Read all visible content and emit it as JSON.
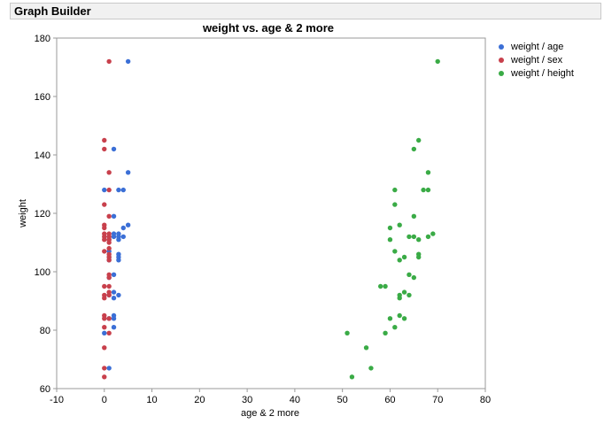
{
  "window": {
    "title": "Graph Builder"
  },
  "chart_data": {
    "type": "scatter",
    "title": "weight vs. age & 2 more",
    "xlabel": "age & 2 more",
    "ylabel": "weight",
    "xlim": [
      -10,
      80
    ],
    "ylim": [
      60,
      180
    ],
    "xticks": [
      -10,
      0,
      10,
      20,
      30,
      40,
      50,
      60,
      70,
      80
    ],
    "yticks": [
      60,
      80,
      100,
      120,
      140,
      160,
      180
    ],
    "grid": false,
    "legend_position": "right",
    "series": [
      {
        "name": "weight / age",
        "color": "#3b6fd6",
        "points": [
          [
            5,
            172
          ],
          [
            2,
            142
          ],
          [
            5,
            134
          ],
          [
            0,
            128
          ],
          [
            3,
            128
          ],
          [
            4,
            128
          ],
          [
            2,
            119
          ],
          [
            5,
            116
          ],
          [
            4,
            115
          ],
          [
            2,
            113
          ],
          [
            3,
            113
          ],
          [
            1,
            112
          ],
          [
            2,
            112
          ],
          [
            3,
            112
          ],
          [
            4,
            112
          ],
          [
            1,
            111
          ],
          [
            3,
            111
          ],
          [
            1,
            107
          ],
          [
            3,
            106
          ],
          [
            1,
            105
          ],
          [
            3,
            105
          ],
          [
            1,
            104
          ],
          [
            3,
            104
          ],
          [
            2,
            99
          ],
          [
            1,
            98
          ],
          [
            2,
            93
          ],
          [
            3,
            92
          ],
          [
            1,
            92
          ],
          [
            2,
            91
          ],
          [
            2,
            85
          ],
          [
            1,
            84
          ],
          [
            2,
            84
          ],
          [
            2,
            81
          ],
          [
            0,
            79
          ],
          [
            1,
            67
          ]
        ]
      },
      {
        "name": "weight / sex",
        "color": "#c8404c",
        "points": [
          [
            1,
            172
          ],
          [
            0,
            145
          ],
          [
            0,
            142
          ],
          [
            1,
            134
          ],
          [
            1,
            128
          ],
          [
            0,
            123
          ],
          [
            1,
            119
          ],
          [
            0,
            116
          ],
          [
            0,
            115
          ],
          [
            0,
            113
          ],
          [
            1,
            113
          ],
          [
            0,
            112
          ],
          [
            1,
            112
          ],
          [
            0,
            111
          ],
          [
            1,
            111
          ],
          [
            1,
            110
          ],
          [
            1,
            108
          ],
          [
            0,
            107
          ],
          [
            1,
            106
          ],
          [
            1,
            105
          ],
          [
            1,
            104
          ],
          [
            1,
            99
          ],
          [
            1,
            98
          ],
          [
            0,
            95
          ],
          [
            1,
            95
          ],
          [
            1,
            93
          ],
          [
            0,
            92
          ],
          [
            1,
            92
          ],
          [
            0,
            91
          ],
          [
            0,
            85
          ],
          [
            0,
            84
          ],
          [
            1,
            84
          ],
          [
            0,
            81
          ],
          [
            1,
            79
          ],
          [
            0,
            74
          ],
          [
            0,
            67
          ],
          [
            0,
            64
          ]
        ]
      },
      {
        "name": "weight / height",
        "color": "#3aab46",
        "points": [
          [
            70,
            172
          ],
          [
            66,
            145
          ],
          [
            65,
            142
          ],
          [
            68,
            134
          ],
          [
            61,
            128
          ],
          [
            67,
            128
          ],
          [
            68,
            128
          ],
          [
            61,
            123
          ],
          [
            65,
            119
          ],
          [
            62,
            116
          ],
          [
            60,
            115
          ],
          [
            69,
            113
          ],
          [
            64,
            112
          ],
          [
            65,
            112
          ],
          [
            68,
            112
          ],
          [
            66,
            111
          ],
          [
            60,
            111
          ],
          [
            61,
            107
          ],
          [
            66,
            106
          ],
          [
            63,
            105
          ],
          [
            66,
            105
          ],
          [
            62,
            104
          ],
          [
            64,
            99
          ],
          [
            65,
            98
          ],
          [
            58,
            95
          ],
          [
            59,
            95
          ],
          [
            63,
            93
          ],
          [
            62,
            92
          ],
          [
            64,
            92
          ],
          [
            62,
            91
          ],
          [
            62,
            85
          ],
          [
            60,
            84
          ],
          [
            63,
            84
          ],
          [
            61,
            81
          ],
          [
            51,
            79
          ],
          [
            59,
            79
          ],
          [
            55,
            74
          ],
          [
            56,
            67
          ],
          [
            52,
            64
          ]
        ]
      }
    ]
  }
}
